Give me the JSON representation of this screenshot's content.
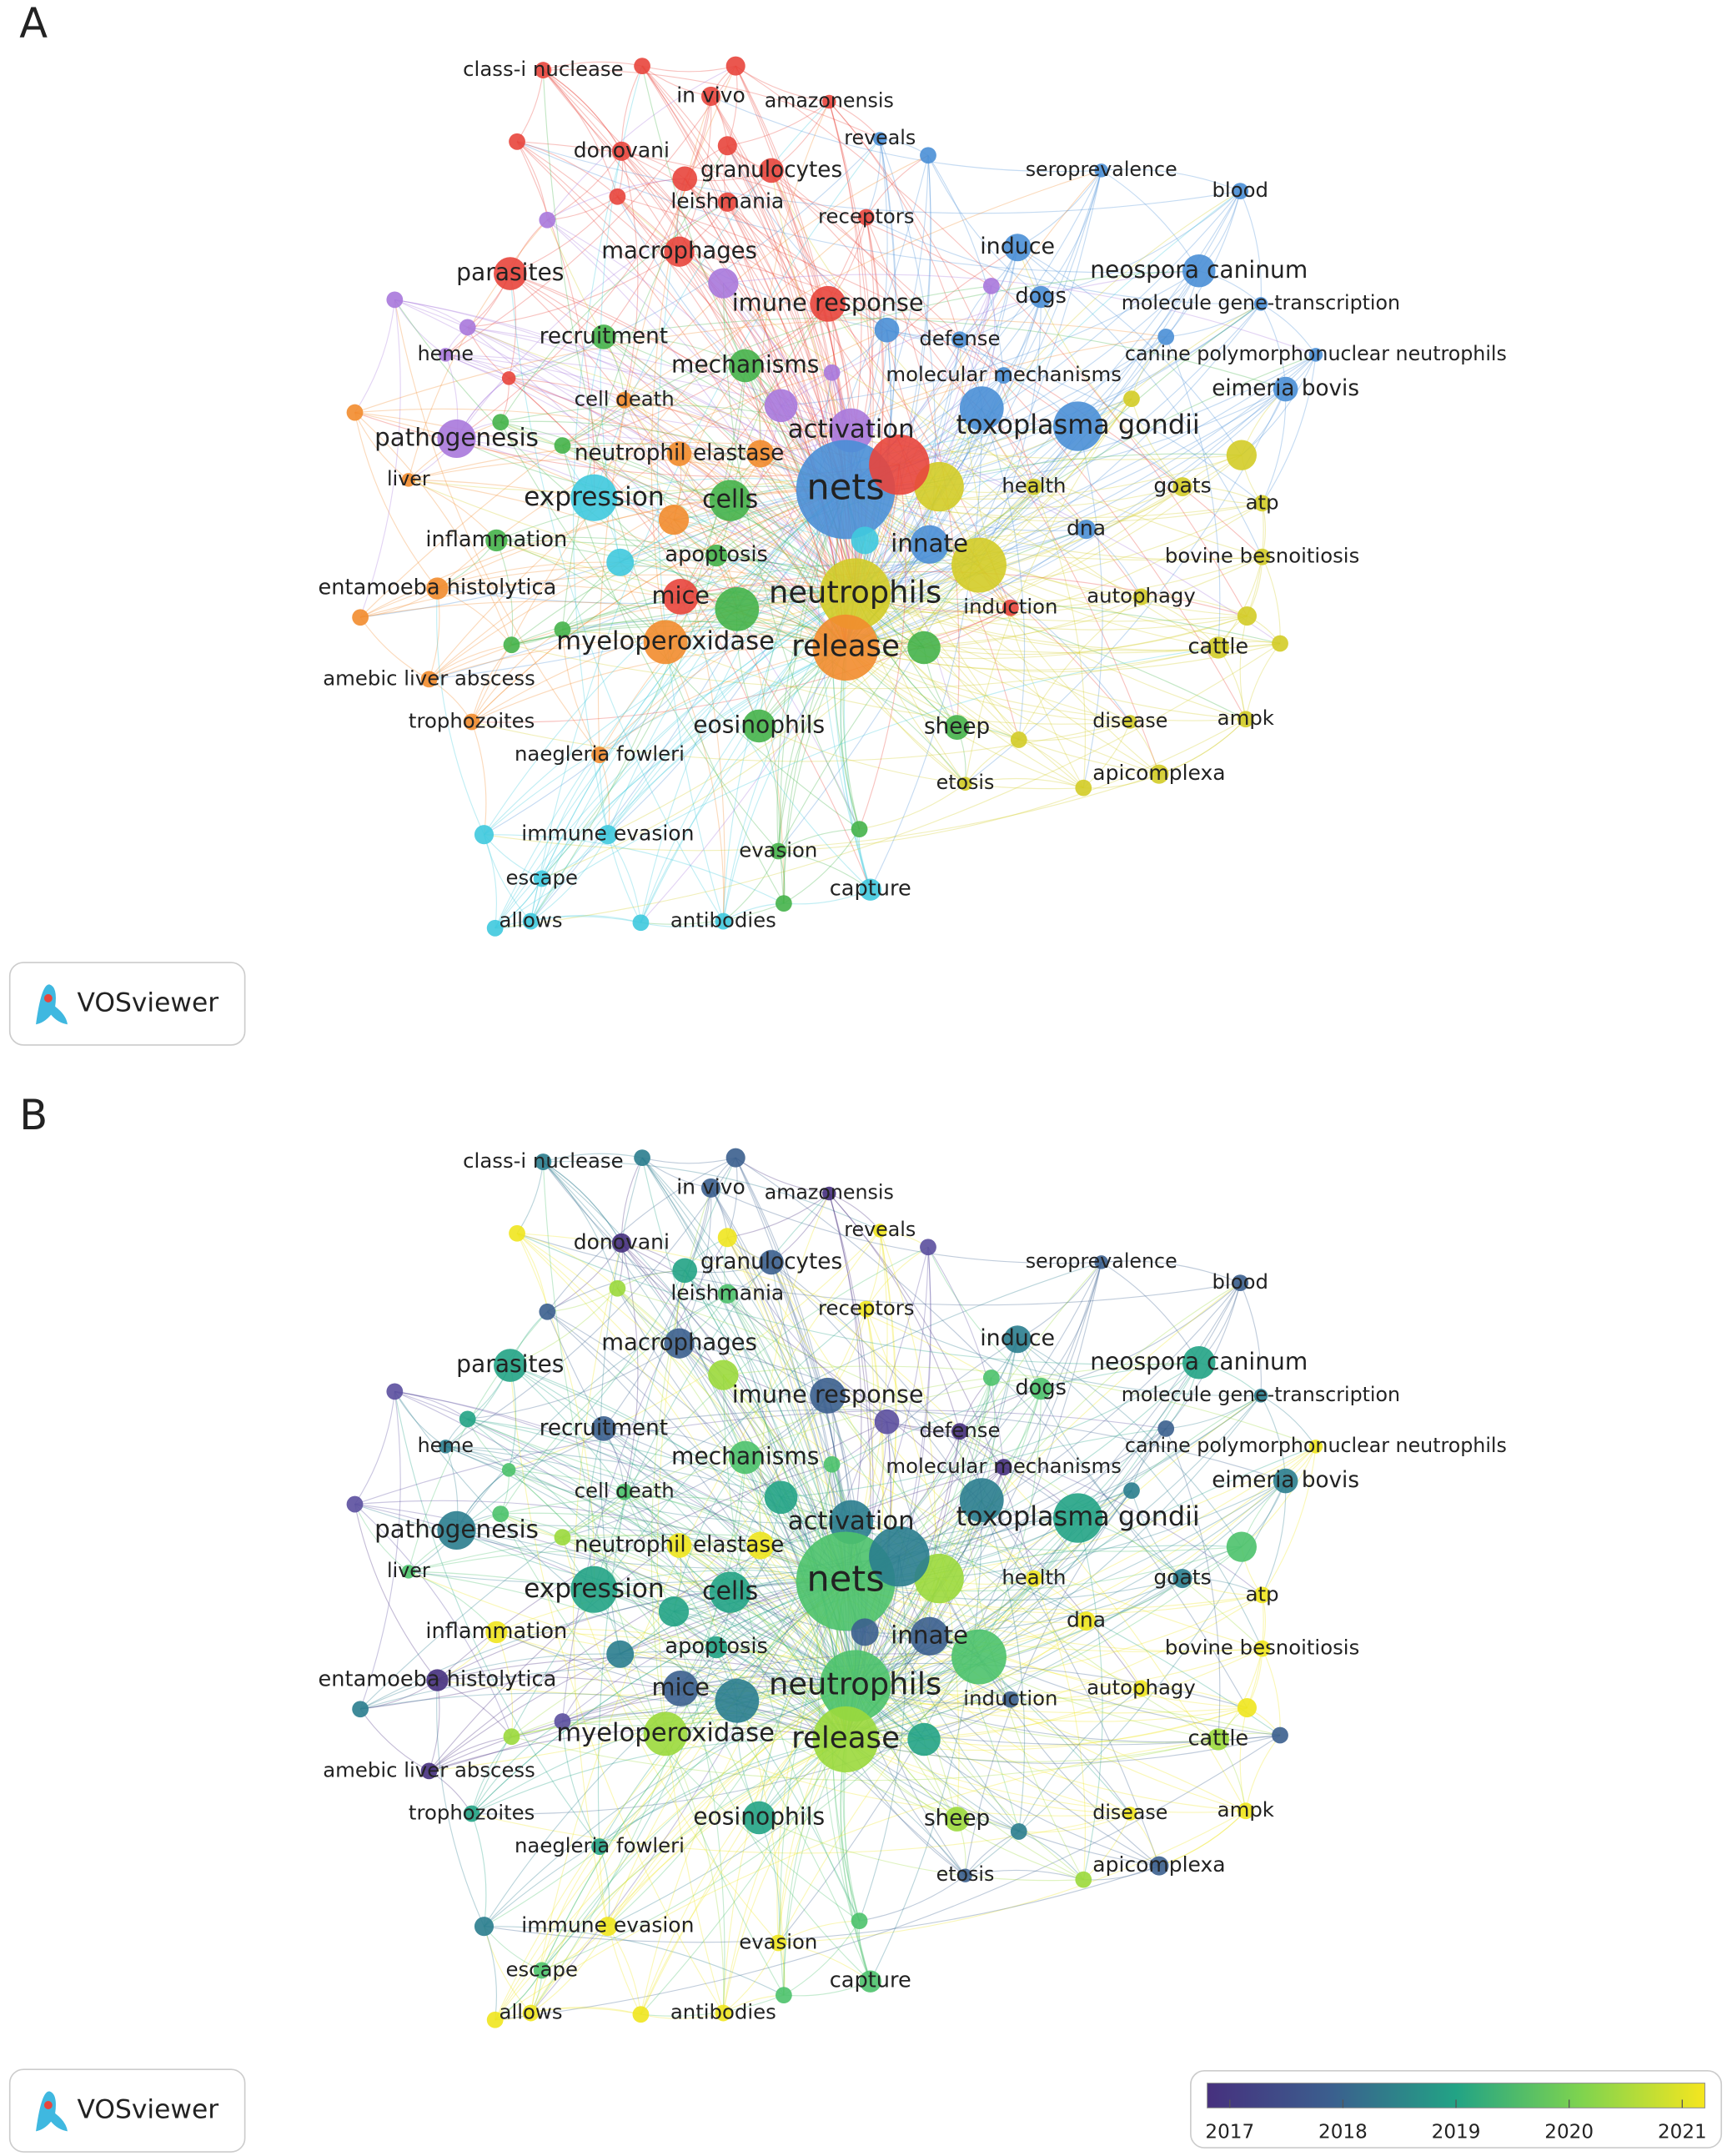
{
  "logo": "VOSviewer",
  "nodes": [
    "class-i nuclease",
    "in vivo",
    "amazonensis",
    "donovani",
    "granulocytes",
    "reveals",
    "leishmania",
    "receptors",
    "seroprevalence",
    "blood",
    "macrophages",
    "induce",
    "parasites",
    "neospora caninum",
    "dogs",
    "imune response",
    "molecule gene-transcription",
    "defense",
    "recruitment",
    "heme",
    "canine polymorphonuclear neutrophils",
    "mechanisms",
    "molecular mechanisms",
    "eimeria bovis",
    "cell death",
    "pathogenesis",
    "activation",
    "toxoplasma gondii",
    "neutrophil elastase",
    "nets",
    "liver",
    "health",
    "goats",
    "expression",
    "cells",
    "atp",
    "dna",
    "inflammation",
    "innate",
    "apoptosis",
    "bovine besnoitiosis",
    "entamoeba histolytica",
    "mice",
    "neutrophils",
    "autophagy",
    "induction",
    "myeloperoxidase",
    "release",
    "cattle",
    "amebic liver abscess",
    "trophozoites",
    "eosinophils",
    "sheep",
    "disease",
    "ampk",
    "naegleria fowleri",
    "etosis",
    "apicomplexa",
    "immune evasion",
    "evasion",
    "escape",
    "capture",
    "allows",
    "antibodies"
  ],
  "panels": [
    {
      "label": "A",
      "node_colors": [
        "#e8453c",
        "#e8453c",
        "#e8453c",
        "#e8453c",
        "#e8453c",
        "#4a8fd6",
        "#e8453c",
        "#e8453c",
        "#4a8fd6",
        "#4a8fd6",
        "#e8453c",
        "#4a8fd6",
        "#e8453c",
        "#4a8fd6",
        "#4a8fd6",
        "#e8453c",
        "#4a8fd6",
        "#4a8fd6",
        "#45b34a",
        "#a878dc",
        "#4a8fd6",
        "#45b34a",
        "#4a8fd6",
        "#4a8fd6",
        "#f28c2e",
        "#a878dc",
        "#a878dc",
        "#4a8fd6",
        "#f28c2e",
        "#4a8fd6",
        "#f28c2e",
        "#d3cc27",
        "#d3cc27",
        "#3fc9de",
        "#45b34a",
        "#d3cc27",
        "#4a8fd6",
        "#45b34a",
        "#4a8fd6",
        "#45b34a",
        "#d3cc27",
        "#f28c2e",
        "#e8453c",
        "#d3cc27",
        "#d3cc27",
        "#e8453c",
        "#f28c2e",
        "#f28c2e",
        "#d3cc27",
        "#f28c2e",
        "#f28c2e",
        "#45b34a",
        "#45b34a",
        "#d3cc27",
        "#d3cc27",
        "#f28c2e",
        "#d3cc27",
        "#d3cc27",
        "#3fc9de",
        "#45b34a",
        "#3fc9de",
        "#3fc9de",
        "#3fc9de",
        "#3fc9de"
      ]
    },
    {
      "label": "B",
      "node_colors": [
        "#2a7d8e",
        "#3b5f8e",
        "#46307e",
        "#46307e",
        "#3b5f8e",
        "#f0e51f",
        "#4cc26c",
        "#f0e51f",
        "#3b5f8e",
        "#3b5f8e",
        "#3b5f8e",
        "#2a7d8e",
        "#22a385",
        "#22a385",
        "#4cc26c",
        "#3b5f8e",
        "#2a7d8e",
        "#46307e",
        "#3b5f8e",
        "#2a7d8e",
        "#f0e51f",
        "#4cc26c",
        "#46307e",
        "#2a7d8e",
        "#4cc26c",
        "#2a7d8e",
        "#2a7d8e",
        "#22a385",
        "#f0e51f",
        "#4cc26c",
        "#4cc26c",
        "#f0e51f",
        "#2a7d8e",
        "#22a385",
        "#22a385",
        "#f0e51f",
        "#f0e51f",
        "#f0e51f",
        "#3b5f8e",
        "#22a385",
        "#f0e51f",
        "#46307e",
        "#3b5f8e",
        "#4cc26c",
        "#f0e51f",
        "#3b5f8e",
        "#9bd93c",
        "#9bd93c",
        "#9bd93c",
        "#46307e",
        "#22a385",
        "#22a385",
        "#9bd93c",
        "#f0e51f",
        "#f0e51f",
        "#22a385",
        "#3b5f8e",
        "#3b5f8e",
        "#f0e51f",
        "#f0e51f",
        "#4cc26c",
        "#4cc26c",
        "#f0e51f",
        "#f0e51f"
      ],
      "colorbar": {
        "lim": [
          2016.8,
          2021.2
        ],
        "ticks": [
          2017,
          2018,
          2019,
          2020,
          2021
        ]
      }
    }
  ]
}
